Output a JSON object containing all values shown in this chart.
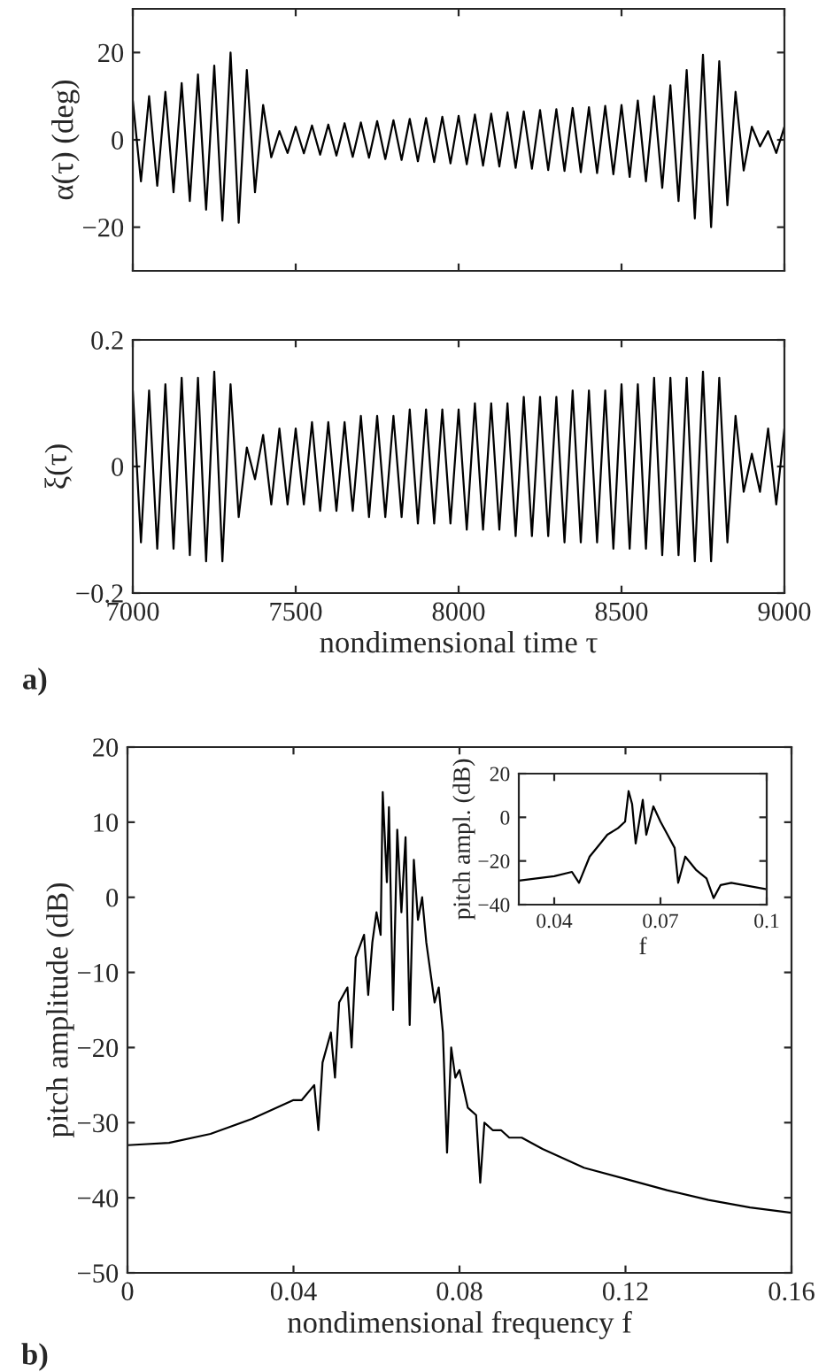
{
  "chart_data": [
    {
      "type": "line",
      "ylabel": "α(τ) (deg)",
      "tick_labels": "y",
      "xlim": [
        7000,
        9000
      ],
      "ylim": [
        -30,
        30
      ],
      "xticks": [
        7000,
        7500,
        8000,
        8500,
        9000
      ],
      "yticks": [
        {
          "value": -20,
          "label": "−20"
        },
        0,
        20
      ],
      "x": [
        7000,
        7025,
        7050,
        7075,
        7100,
        7125,
        7150,
        7175,
        7200,
        7225,
        7250,
        7275,
        7300,
        7325,
        7350,
        7375,
        7400,
        7425,
        7450,
        7475,
        7500,
        7525,
        7550,
        7575,
        7600,
        7625,
        7650,
        7675,
        7700,
        7725,
        7750,
        7775,
        7800,
        7825,
        7850,
        7875,
        7900,
        7925,
        7950,
        7975,
        8000,
        8025,
        8050,
        8075,
        8100,
        8125,
        8150,
        8175,
        8200,
        8225,
        8250,
        8275,
        8300,
        8325,
        8350,
        8375,
        8400,
        8425,
        8450,
        8475,
        8500,
        8525,
        8550,
        8575,
        8600,
        8625,
        8650,
        8675,
        8700,
        8725,
        8750,
        8775,
        8800,
        8825,
        8850,
        8875,
        8900,
        8925,
        8950,
        8975,
        9000
      ],
      "series": [
        {
          "color": "#000000",
          "values": [
            9,
            -9.5,
            10,
            -10.5,
            11,
            -12,
            13,
            -14,
            15,
            -16,
            17,
            -18.5,
            20,
            -19,
            16,
            -12,
            8,
            -4,
            2,
            -3,
            3,
            -3.1,
            3.3,
            -3.4,
            3.5,
            -3.6,
            3.8,
            -3.9,
            4,
            -4.1,
            4.3,
            -4.4,
            4.5,
            -4.6,
            4.8,
            -4.9,
            5,
            -5.1,
            5.3,
            -5.4,
            5.5,
            -5.6,
            5.8,
            -5.9,
            6,
            -6.1,
            6.3,
            -6.4,
            6.5,
            -6.6,
            6.8,
            -6.9,
            7,
            -7.1,
            7.3,
            -7.4,
            7.5,
            -7.6,
            7.8,
            -7.9,
            8,
            -8.5,
            9,
            -9.5,
            10,
            -11,
            12.5,
            -14,
            16,
            -18,
            19.5,
            -20,
            18,
            -15,
            11,
            -7,
            3,
            -1.5,
            2,
            -3,
            3
          ]
        }
      ]
    },
    {
      "type": "line",
      "ylabel": "ξ(τ)",
      "xlabel": "nondimensional time τ",
      "annotations": [
        "a)"
      ],
      "xlim": [
        7000,
        9000
      ],
      "ylim": [
        -0.2,
        0.2
      ],
      "xticks": [
        7000,
        7500,
        8000,
        8500,
        9000
      ],
      "yticks": [
        {
          "value": -0.2,
          "label": "−0.2"
        },
        0,
        0.2
      ],
      "x": [
        7000,
        7025,
        7050,
        7075,
        7100,
        7125,
        7150,
        7175,
        7200,
        7225,
        7250,
        7275,
        7300,
        7325,
        7350,
        7375,
        7400,
        7425,
        7450,
        7475,
        7500,
        7525,
        7550,
        7575,
        7600,
        7625,
        7650,
        7675,
        7700,
        7725,
        7750,
        7775,
        7800,
        7825,
        7850,
        7875,
        7900,
        7925,
        7950,
        7975,
        8000,
        8025,
        8050,
        8075,
        8100,
        8125,
        8150,
        8175,
        8200,
        8225,
        8250,
        8275,
        8300,
        8325,
        8350,
        8375,
        8400,
        8425,
        8450,
        8475,
        8500,
        8525,
        8550,
        8575,
        8600,
        8625,
        8650,
        8675,
        8700,
        8725,
        8750,
        8775,
        8800,
        8825,
        8850,
        8875,
        8900,
        8925,
        8950,
        8975,
        9000
      ],
      "series": [
        {
          "color": "#000000",
          "values": [
            0.12,
            -0.12,
            0.12,
            -0.13,
            0.13,
            -0.13,
            0.14,
            -0.14,
            0.14,
            -0.15,
            0.15,
            -0.15,
            0.13,
            -0.08,
            0.03,
            -0.02,
            0.05,
            -0.06,
            0.06,
            -0.06,
            0.06,
            -0.06,
            0.07,
            -0.07,
            0.07,
            -0.07,
            0.07,
            -0.07,
            0.08,
            -0.08,
            0.08,
            -0.08,
            0.08,
            -0.08,
            0.09,
            -0.09,
            0.09,
            -0.09,
            0.09,
            -0.09,
            0.09,
            -0.1,
            0.1,
            -0.1,
            0.1,
            -0.1,
            0.1,
            -0.11,
            0.11,
            -0.11,
            0.11,
            -0.11,
            0.11,
            -0.12,
            0.12,
            -0.12,
            0.12,
            -0.12,
            0.12,
            -0.13,
            0.13,
            -0.13,
            0.13,
            -0.13,
            0.14,
            -0.14,
            0.14,
            -0.14,
            0.14,
            -0.15,
            0.15,
            -0.15,
            0.14,
            -0.12,
            0.08,
            -0.04,
            0.02,
            -0.04,
            0.06,
            -0.06,
            0.06
          ]
        }
      ]
    },
    {
      "type": "line",
      "ylabel": "pitch amplitude (dB)",
      "xlabel": "nondimensional frequency f",
      "annotations": [
        "b)"
      ],
      "xlim": [
        0,
        0.16
      ],
      "ylim": [
        -50,
        20
      ],
      "xticks": [
        0,
        0.04,
        0.08,
        0.12,
        0.16
      ],
      "yticks": [
        {
          "value": -50,
          "label": "−50"
        },
        {
          "value": -40,
          "label": "−40"
        },
        {
          "value": -30,
          "label": "−30"
        },
        {
          "value": -20,
          "label": "−20"
        },
        {
          "value": -10,
          "label": "−10"
        },
        0,
        10,
        20
      ],
      "x": [
        0,
        0.01,
        0.02,
        0.03,
        0.04,
        0.042,
        0.045,
        0.046,
        0.047,
        0.049,
        0.05,
        0.051,
        0.053,
        0.054,
        0.055,
        0.057,
        0.058,
        0.059,
        0.06,
        0.061,
        0.0615,
        0.0625,
        0.063,
        0.064,
        0.065,
        0.066,
        0.067,
        0.068,
        0.069,
        0.07,
        0.071,
        0.072,
        0.073,
        0.074,
        0.075,
        0.076,
        0.077,
        0.078,
        0.079,
        0.08,
        0.082,
        0.084,
        0.085,
        0.086,
        0.088,
        0.09,
        0.092,
        0.095,
        0.1,
        0.11,
        0.12,
        0.13,
        0.14,
        0.15,
        0.16
      ],
      "series": [
        {
          "color": "#000000",
          "values": [
            -33,
            -32.7,
            -31.5,
            -29.5,
            -27,
            -27,
            -25,
            -31,
            -22,
            -18,
            -24,
            -14,
            -12,
            -20,
            -8,
            -5,
            -13,
            -6,
            -2,
            -5,
            14,
            2,
            12,
            -15,
            9,
            -2,
            8,
            -17,
            5,
            -3,
            0,
            -6,
            -10,
            -14,
            -12,
            -18,
            -34,
            -20,
            -24,
            -23,
            -28,
            -29,
            -38,
            -30,
            -31,
            -31,
            -32,
            -32,
            -33.5,
            -36,
            -37.5,
            -39,
            -40.3,
            -41.3,
            -42
          ]
        }
      ]
    },
    {
      "type": "line",
      "ylabel": "pitch ampl. (dB)",
      "xlabel": "f",
      "xlim": [
        0.03,
        0.1
      ],
      "ylim": [
        -40,
        20
      ],
      "xticks": [
        0.04,
        0.07,
        0.1
      ],
      "yticks": [
        {
          "value": -40,
          "label": "−40"
        },
        {
          "value": -20,
          "label": "−20"
        },
        0,
        20
      ],
      "x": [
        0.03,
        0.04,
        0.045,
        0.047,
        0.05,
        0.053,
        0.055,
        0.058,
        0.06,
        0.061,
        0.062,
        0.063,
        0.065,
        0.066,
        0.068,
        0.07,
        0.072,
        0.074,
        0.075,
        0.077,
        0.08,
        0.083,
        0.085,
        0.087,
        0.09,
        0.1
      ],
      "series": [
        {
          "color": "#000000",
          "values": [
            -29,
            -27,
            -25,
            -30,
            -18,
            -12,
            -8,
            -5,
            -2,
            12,
            6,
            -12,
            8,
            -8,
            5,
            -2,
            -8,
            -14,
            -30,
            -18,
            -24,
            -28,
            -37,
            -31,
            -30,
            -33
          ]
        }
      ]
    }
  ]
}
